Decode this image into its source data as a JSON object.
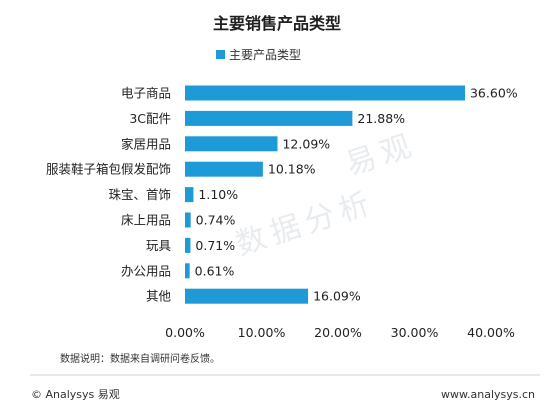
{
  "chart_data": {
    "type": "bar",
    "orientation": "horizontal",
    "title": "主要销售产品类型",
    "categories": [
      "电子商品",
      "3C配件",
      "家居用品",
      "服装鞋子箱包假发配饰",
      "珠宝、首饰",
      "床上用品",
      "玩具",
      "办公用品",
      "其他"
    ],
    "series": [
      {
        "name": "主要产品类型",
        "values": [
          36.6,
          21.88,
          12.09,
          10.18,
          1.1,
          0.74,
          0.71,
          0.61,
          16.09
        ],
        "value_labels": [
          "36.60%",
          "21.88%",
          "12.09%",
          "10.18%",
          "1.10%",
          "0.74%",
          "0.71%",
          "0.61%",
          "16.09%"
        ]
      }
    ],
    "xlim": [
      0,
      40
    ],
    "x_ticks": [
      0,
      10,
      20,
      30,
      40
    ],
    "x_tick_labels": [
      "0.00%",
      "10.00%",
      "20.00%",
      "30.00%",
      "40.00%"
    ],
    "xlabel": "",
    "ylabel": "",
    "grid": false,
    "legend_position": "top-center",
    "bar_color": "#1e9ad6"
  },
  "note": "数据说明：数据来自调研问卷反馈。",
  "footer": {
    "copyright": "© Analysys 易观",
    "website": "www.analysys.cn"
  },
  "watermark": {
    "brand": "易观",
    "slogan": "数据分析"
  }
}
